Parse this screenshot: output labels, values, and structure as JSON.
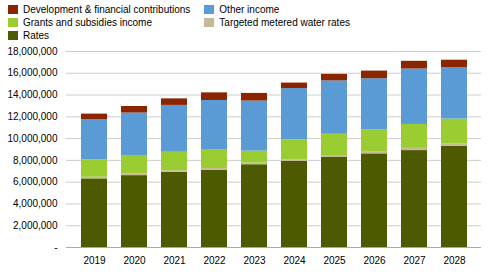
{
  "chart_data": {
    "type": "bar",
    "stacked": true,
    "categories": [
      "2019",
      "2020",
      "2021",
      "2022",
      "2023",
      "2024",
      "2025",
      "2026",
      "2027",
      "2028"
    ],
    "series": [
      {
        "name": "Rates",
        "color": "#4d5a00",
        "values": [
          6300000,
          6600000,
          6900000,
          7100000,
          7600000,
          7900000,
          8300000,
          8600000,
          8900000,
          9300000
        ]
      },
      {
        "name": "Targeted metered water rates",
        "color": "#c8b89a",
        "values": [
          150000,
          150000,
          150000,
          150000,
          150000,
          150000,
          150000,
          200000,
          200000,
          200000
        ]
      },
      {
        "name": "Grants and subsidies income",
        "color": "#9acd32",
        "values": [
          1600000,
          1700000,
          1700000,
          1750000,
          1100000,
          1850000,
          1950000,
          2000000,
          2200000,
          2300000
        ]
      },
      {
        "name": "Other income",
        "color": "#5b9bd5",
        "values": [
          3700000,
          3900000,
          4300000,
          4500000,
          4600000,
          4700000,
          4900000,
          4700000,
          5100000,
          4700000
        ]
      },
      {
        "name": "Development & financial contributions",
        "color": "#8b2500",
        "values": [
          500000,
          600000,
          600000,
          700000,
          700000,
          500000,
          600000,
          700000,
          700000,
          700000
        ]
      }
    ],
    "ylim": [
      0,
      18000000
    ],
    "yticks": [
      {
        "value": 0,
        "label": "-"
      },
      {
        "value": 2000000,
        "label": "2,000,000"
      },
      {
        "value": 4000000,
        "label": "4,000,000"
      },
      {
        "value": 6000000,
        "label": "6,000,000"
      },
      {
        "value": 8000000,
        "label": "8,000,000"
      },
      {
        "value": 10000000,
        "label": "10,000,000"
      },
      {
        "value": 12000000,
        "label": "12,000,000"
      },
      {
        "value": 14000000,
        "label": "14,000,000"
      },
      {
        "value": 16000000,
        "label": "16,000,000"
      },
      {
        "value": 18000000,
        "label": "18,000,000"
      }
    ],
    "grid": true,
    "legend": "upper left"
  }
}
